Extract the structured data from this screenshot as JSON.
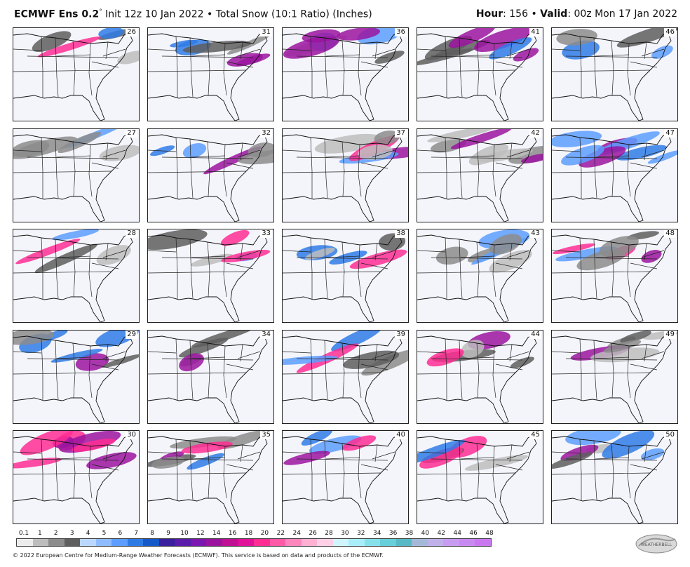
{
  "header": {
    "model": "ECMWF Ens 0.2",
    "degree": "°",
    "init": "Init 12z 10 Jan 2022",
    "bullet": "•",
    "product": "Total Snow (10:1 Ratio) (Inches)",
    "hour_label": "Hour",
    "hour_value": ": 156",
    "valid_label": "Valid",
    "valid_value": ": 00z Mon 17 Jan 2022"
  },
  "members": [
    "26",
    "31",
    "36",
    "41",
    "46",
    "27",
    "32",
    "37",
    "42",
    "47",
    "28",
    "33",
    "38",
    "43",
    "48",
    "29",
    "34",
    "39",
    "44",
    "49",
    "30",
    "35",
    "40",
    "45",
    "50"
  ],
  "colorbar": {
    "ticks": [
      "0.1",
      "1",
      "2",
      "3",
      "4",
      "5",
      "6",
      "7",
      "8",
      "9",
      "10",
      "12",
      "14",
      "16",
      "18",
      "20",
      "22",
      "24",
      "26",
      "28",
      "30",
      "32",
      "34",
      "36",
      "38",
      "40",
      "42",
      "44",
      "46",
      "48"
    ],
    "colors": [
      "#ececec",
      "#bdbdbd",
      "#8c8c8c",
      "#5e5e5e",
      "#bcd7ff",
      "#8fbcff",
      "#5c9dff",
      "#2f7be6",
      "#1558c8",
      "#3b1f9e",
      "#5a1cab",
      "#7a18b0",
      "#9b149f",
      "#c01093",
      "#e0129a",
      "#ff2d93",
      "#ff5aa8",
      "#ff86bd",
      "#ffb0d3",
      "#ffd0e6",
      "#d0f5ff",
      "#a8eef8",
      "#86e0ea",
      "#66cfd9",
      "#57b8c6",
      "#a4b8d8",
      "#c0b0ea",
      "#c79cf0",
      "#c88af0",
      "#c978f0"
    ]
  },
  "footer": {
    "text": "© 2022 European Centre for Medium-Range Weather Forecasts (ECMWF). This service is based on data and products of the ECMWF."
  },
  "logo": {
    "text": "WEATHERBELL"
  }
}
